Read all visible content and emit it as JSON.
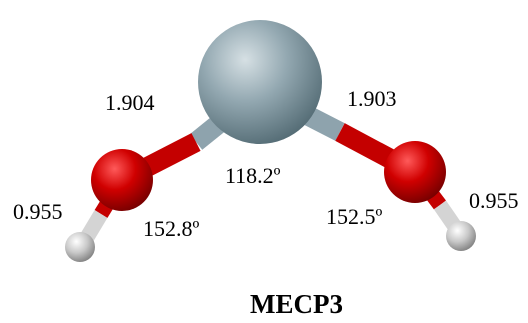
{
  "figure": {
    "caption": "MECP3",
    "labels": {
      "bond_m_o_left": "1.904",
      "bond_m_o_right": "1.903",
      "angle_o_m_o": "118.2º",
      "bond_o_h_left": "0.955",
      "bond_o_h_right": "0.955",
      "angle_m_o_h_left": "152.8º",
      "angle_m_o_h_right": "152.5º"
    },
    "colors": {
      "metal": "#8fa3ac",
      "oxygen": "#c00000",
      "hydrogen": "#c8c8c8",
      "background": "#ffffff"
    }
  }
}
